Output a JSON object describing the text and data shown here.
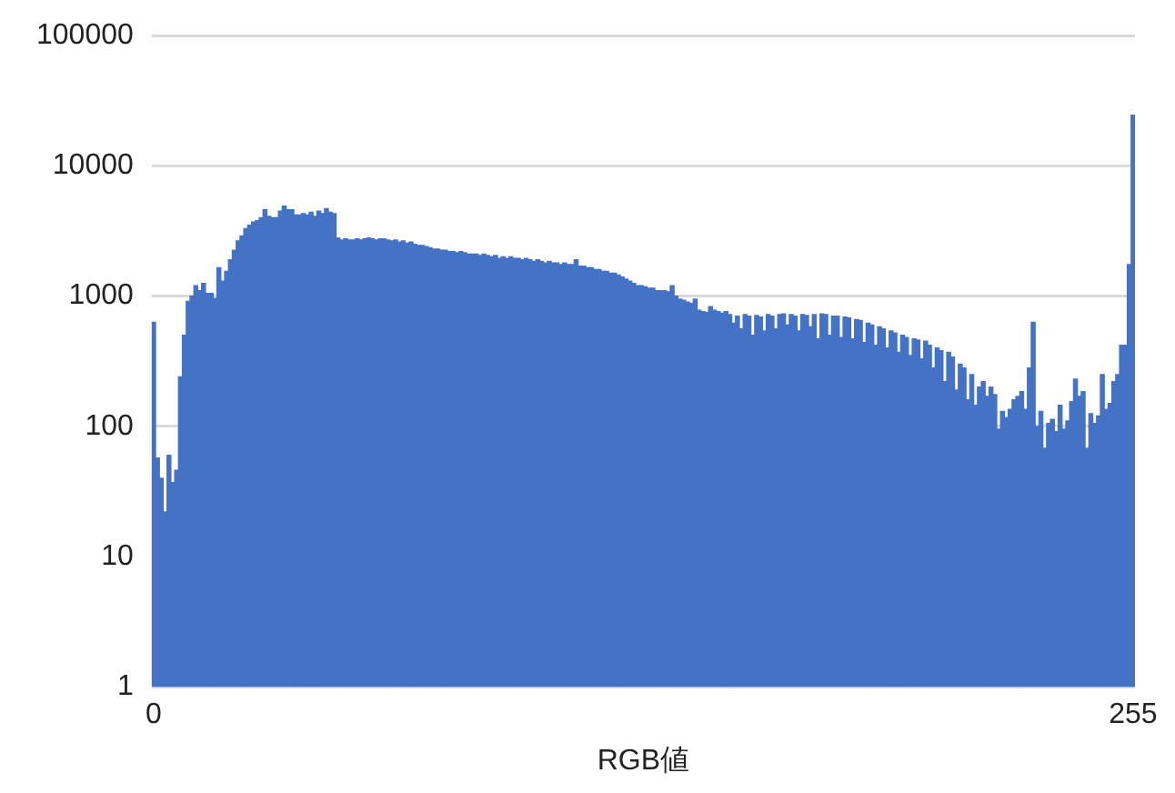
{
  "chart_data": {
    "type": "bar",
    "xlabel": "RGB値",
    "categories": [
      "0",
      null,
      null,
      null,
      null,
      null,
      null,
      null,
      null,
      null,
      null,
      null,
      null,
      null,
      null,
      null,
      null,
      null,
      null,
      null,
      null,
      null,
      null,
      null,
      null,
      null,
      null,
      null,
      null,
      null,
      null,
      null,
      null,
      null,
      null,
      null,
      null,
      null,
      null,
      null,
      null,
      null,
      null,
      null,
      null,
      null,
      null,
      null,
      null,
      null,
      null,
      null,
      null,
      null,
      null,
      null,
      null,
      null,
      null,
      null,
      null,
      null,
      null,
      null,
      null,
      null,
      null,
      null,
      null,
      null,
      null,
      null,
      null,
      null,
      null,
      null,
      null,
      null,
      null,
      null,
      null,
      null,
      null,
      null,
      null,
      null,
      null,
      null,
      null,
      null,
      null,
      null,
      null,
      null,
      null,
      null,
      null,
      null,
      null,
      null,
      null,
      null,
      null,
      null,
      null,
      null,
      null,
      null,
      null,
      null,
      null,
      null,
      null,
      null,
      null,
      null,
      null,
      null,
      null,
      null,
      null,
      null,
      null,
      null,
      null,
      null,
      null,
      null,
      null,
      null,
      null,
      null,
      null,
      null,
      null,
      null,
      null,
      null,
      null,
      null,
      null,
      null,
      null,
      null,
      null,
      null,
      null,
      null,
      null,
      null,
      null,
      null,
      null,
      null,
      null,
      null,
      null,
      null,
      null,
      null,
      null,
      null,
      null,
      null,
      null,
      null,
      null,
      null,
      null,
      null,
      null,
      null,
      null,
      null,
      null,
      null,
      null,
      null,
      null,
      null,
      null,
      null,
      null,
      null,
      null,
      null,
      null,
      null,
      null,
      null,
      null,
      null,
      null,
      null,
      null,
      null,
      null,
      null,
      null,
      null,
      null,
      null,
      null,
      null,
      null,
      null,
      null,
      null,
      null,
      null,
      null,
      null,
      null,
      null,
      null,
      null,
      null,
      null,
      null,
      null,
      null,
      null,
      null,
      null,
      null,
      null,
      null,
      null,
      null,
      null,
      null,
      null,
      null,
      null,
      null,
      null,
      null,
      null,
      null,
      null,
      null,
      null,
      null,
      null,
      null,
      null,
      null,
      null,
      null,
      null,
      null,
      null,
      null,
      null,
      null,
      "255"
    ],
    "values": [
      630,
      57,
      40,
      22,
      60,
      37,
      46,
      240,
      500,
      910,
      1000,
      1200,
      1100,
      1250,
      1050,
      1050,
      960,
      1650,
      1300,
      1550,
      1900,
      2250,
      2650,
      2900,
      3300,
      3500,
      3700,
      3800,
      4000,
      4600,
      4100,
      4000,
      4000,
      4500,
      4900,
      4600,
      4600,
      4200,
      4200,
      4300,
      4200,
      4400,
      4100,
      4500,
      4300,
      4700,
      4400,
      4300,
      2800,
      2700,
      2750,
      2700,
      2700,
      2750,
      2700,
      2750,
      2800,
      2750,
      2700,
      2750,
      2750,
      2700,
      2650,
      2700,
      2600,
      2650,
      2550,
      2600,
      2500,
      2450,
      2450,
      2400,
      2350,
      2300,
      2300,
      2250,
      2250,
      2200,
      2200,
      2150,
      2200,
      2150,
      2100,
      2100,
      2100,
      2050,
      2100,
      2050,
      2000,
      2050,
      1950,
      2000,
      1950,
      2000,
      1950,
      1950,
      1900,
      1950,
      1900,
      1850,
      1900,
      1850,
      1800,
      1850,
      1800,
      1800,
      1750,
      1800,
      1750,
      1750,
      1900,
      1700,
      1700,
      1650,
      1650,
      1600,
      1600,
      1550,
      1550,
      1500,
      1500,
      1450,
      1400,
      1350,
      1300,
      1250,
      1200,
      1200,
      1180,
      1150,
      1150,
      1100,
      1100,
      1100,
      1080,
      1200,
      1000,
      950,
      930,
      900,
      880,
      950,
      780,
      760,
      750,
      830,
      780,
      760,
      740,
      760,
      720,
      620,
      700,
      560,
      720,
      700,
      500,
      710,
      690,
      540,
      720,
      700,
      560,
      720,
      730,
      600,
      720,
      700,
      540,
      720,
      710,
      580,
      720,
      470,
      730,
      720,
      500,
      700,
      700,
      480,
      690,
      680,
      470,
      660,
      650,
      440,
      620,
      600,
      420,
      580,
      560,
      400,
      540,
      520,
      370,
      500,
      480,
      350,
      470,
      460,
      330,
      450,
      420,
      280,
      400,
      380,
      220,
      370,
      340,
      190,
      300,
      280,
      160,
      250,
      145,
      200,
      220,
      170,
      200,
      175,
      95,
      130,
      117,
      135,
      160,
      170,
      185,
      135,
      280,
      630,
      100,
      130,
      68,
      105,
      113,
      91,
      145,
      95,
      110,
      155,
      230,
      170,
      185,
      68,
      125,
      105,
      120,
      250,
      135,
      150,
      220,
      250,
      420,
      420,
      1750,
      24500
    ],
    "color": "#4472c4",
    "log": true,
    "ylim": [
      1,
      100000
    ],
    "yticks": [
      1,
      10,
      100,
      1000,
      10000,
      100000
    ],
    "grid": "y",
    "legend": false
  }
}
